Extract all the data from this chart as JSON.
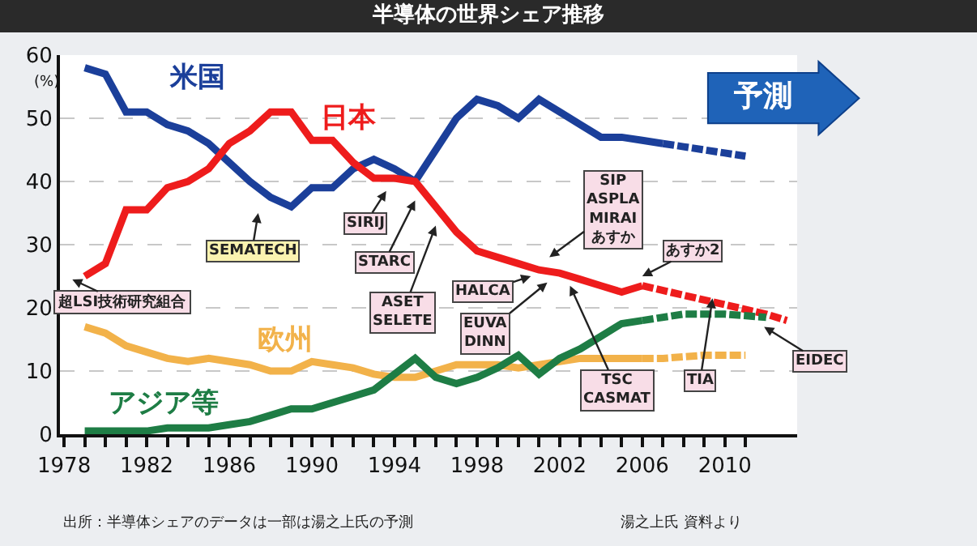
{
  "chart_data": {
    "type": "line",
    "title": "半導体の世界シェア推移",
    "ylabel": "(%)",
    "xlim": [
      1977.8,
      2013.5
    ],
    "ylim": [
      0,
      60
    ],
    "yticks": [
      0,
      10,
      20,
      30,
      40,
      50,
      60
    ],
    "xticks": [
      1978,
      {
        "value": 1979,
        "label": null
      },
      {
        "value": 1980,
        "label": null
      },
      {
        "value": 1981,
        "label": null
      },
      1982,
      {
        "value": 1983,
        "label": null
      },
      {
        "value": 1984,
        "label": null
      },
      {
        "value": 1985,
        "label": null
      },
      1986,
      {
        "value": 1987,
        "label": null
      },
      {
        "value": 1988,
        "label": null
      },
      {
        "value": 1989,
        "label": null
      },
      1990,
      {
        "value": 1991,
        "label": null
      },
      {
        "value": 1992,
        "label": null
      },
      {
        "value": 1993,
        "label": null
      },
      1994,
      {
        "value": 1995,
        "label": null
      },
      {
        "value": 1996,
        "label": null
      },
      {
        "value": 1997,
        "label": null
      },
      1998,
      {
        "value": 1999,
        "label": null
      },
      {
        "value": 2000,
        "label": null
      },
      {
        "value": 2001,
        "label": null
      },
      2002,
      {
        "value": 2003,
        "label": null
      },
      {
        "value": 2004,
        "label": null
      },
      {
        "value": 2005,
        "label": null
      },
      2006,
      {
        "value": 2007,
        "label": null
      },
      {
        "value": 2008,
        "label": null
      },
      {
        "value": 2009,
        "label": null
      },
      2010,
      {
        "value": 2011,
        "label": null
      }
    ],
    "grid": "y",
    "legend": false,
    "marker": "none",
    "series": [
      {
        "name": "米国",
        "color": "#1b3f9a",
        "line_style": "solid",
        "x": [
          1979,
          1980,
          1981,
          1982,
          1983,
          1984,
          1985,
          1986,
          1987,
          1988,
          1989,
          1990,
          1991,
          1992,
          1993,
          1994,
          1995,
          1996,
          1997,
          1998,
          1999,
          2000,
          2001,
          2002,
          2003,
          2004,
          2005,
          2006,
          2007
        ],
        "values": [
          58,
          57,
          51,
          51,
          49,
          48,
          46,
          43,
          40,
          37.5,
          36,
          39,
          39,
          42,
          43.5,
          42,
          40,
          45,
          50,
          53,
          52,
          50,
          53,
          51,
          49,
          47,
          47,
          46.5,
          46
        ]
      },
      {
        "color": "#1b3f9a",
        "line_style": "dashed",
        "x": [
          2007,
          2008,
          2009,
          2010,
          2011
        ],
        "values": [
          46,
          45.5,
          45,
          44.5,
          44
        ]
      },
      {
        "name": "日本",
        "color": "#ee1c1c",
        "line_style": "solid",
        "x": [
          1979,
          1980,
          1981,
          1982,
          1983,
          1984,
          1985,
          1986,
          1987,
          1988,
          1989,
          1990,
          1991,
          1992,
          1993,
          1994,
          1995,
          1996,
          1997,
          1998,
          1999,
          2000,
          2001,
          2002,
          2003,
          2004,
          2005,
          2006
        ],
        "values": [
          25,
          27,
          35.5,
          35.5,
          39,
          40,
          42,
          46,
          48,
          51,
          51,
          46.5,
          46.5,
          43,
          40.5,
          40.5,
          40,
          36,
          32,
          29,
          28,
          27,
          26,
          25.5,
          24.5,
          23.5,
          22.5,
          23.5
        ]
      },
      {
        "color": "#ee1c1c",
        "line_style": "dashed",
        "x": [
          2006,
          2008,
          2010,
          2012,
          2013
        ],
        "values": [
          23.5,
          22,
          20.5,
          19,
          18
        ]
      },
      {
        "name": "欧州",
        "color": "#f2b24a",
        "line_style": "solid",
        "x": [
          1979,
          1980,
          1981,
          1982,
          1983,
          1984,
          1985,
          1986,
          1987,
          1988,
          1989,
          1990,
          1991,
          1992,
          1993,
          1994,
          1995,
          1996,
          1997,
          1998,
          1999,
          2000,
          2001,
          2002,
          2003,
          2004,
          2005,
          2006
        ],
        "values": [
          17,
          16,
          14,
          13,
          12,
          11.5,
          12,
          11.5,
          11,
          10,
          10,
          11.5,
          11,
          10.5,
          9.5,
          9,
          9,
          10,
          11,
          11,
          11,
          10.5,
          11,
          11.5,
          12,
          12,
          12,
          12
        ]
      },
      {
        "color": "#f2b24a",
        "line_style": "dashed",
        "x": [
          2006,
          2007,
          2009,
          2011
        ],
        "values": [
          12,
          12,
          12.5,
          12.5
        ]
      },
      {
        "name": "アジア等",
        "color": "#1e7d45",
        "line_style": "solid",
        "x": [
          1979,
          1980,
          1981,
          1982,
          1983,
          1984,
          1985,
          1986,
          1987,
          1988,
          1989,
          1990,
          1991,
          1992,
          1993,
          1994,
          1995,
          1996,
          1997,
          1998,
          1999,
          2000,
          2001,
          2002,
          2003,
          2004,
          2005,
          2006
        ],
        "values": [
          0.5,
          0.5,
          0.5,
          0.5,
          1,
          1,
          1,
          1.5,
          2,
          3,
          4,
          4,
          5,
          6,
          7,
          9.5,
          12,
          9,
          8,
          9,
          10.5,
          12.5,
          9.5,
          12,
          13.5,
          15.5,
          17.5,
          18
        ]
      },
      {
        "color": "#1e7d45",
        "line_style": "dashed",
        "x": [
          2006,
          2008,
          2010,
          2012
        ],
        "values": [
          18,
          19,
          19,
          18.5
        ]
      }
    ],
    "annotations": [
      "超LSI技術研究組合",
      "SEMATECH",
      "SIRIJ",
      "STARC",
      "ASET\nSELETE",
      {
        "text": "HALCA",
        "x": 2000.6,
        "y": 25
      },
      {
        "text": "EUVA\nDINN",
        "x": 2001.4,
        "y": 24
      },
      "SIP\nASPLA\nMIRAI\nあすか",
      {
        "text": "TSC\nCASMAT",
        "x": 2002.5,
        "y": 23.5
      },
      {
        "text": "あすか2",
        "x": 2006,
        "y": 25
      },
      {
        "text": "TIA",
        "x": 2009.4,
        "y": 21.5
      },
      {
        "text": "EIDEC",
        "x": 2011.9,
        "y": 17
      },
      "予測",
      "出所：半導体シェアのデータは一部は湯之上氏の予測",
      "湯之上氏 資料より"
    ]
  }
}
